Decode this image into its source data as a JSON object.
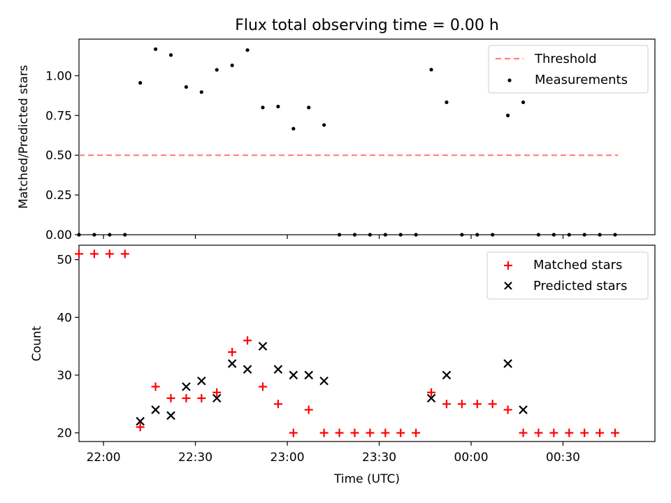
{
  "figure": {
    "title": "Flux total observing time = 0.00 h"
  },
  "chart_data": [
    {
      "type": "scatter",
      "panel": "top",
      "ylabel": "Matched/Predicted stars",
      "ylim": [
        0,
        1.23
      ],
      "xlim": [
        "21:52",
        "01:00"
      ],
      "yticks": [
        "0.00",
        "0.25",
        "0.50",
        "0.75",
        "1.00"
      ],
      "ytick_values": [
        0,
        0.25,
        0.5,
        0.75,
        1.0
      ],
      "legend_position": "top-right",
      "threshold": {
        "name": "Threshold",
        "value": 0.5,
        "x": [
          "21:52",
          "00:48"
        ],
        "color": "#ff7f7f",
        "style": "dashed"
      },
      "series": [
        {
          "name": "Measurements",
          "color": "#000000",
          "x": [
            "21:52",
            "21:57",
            "22:02",
            "22:07",
            "22:12",
            "22:17",
            "22:22",
            "22:27",
            "22:32",
            "22:37",
            "22:42",
            "22:47",
            "22:52",
            "22:57",
            "23:02",
            "23:07",
            "23:12",
            "23:17",
            "23:22",
            "23:27",
            "23:32",
            "23:37",
            "23:42",
            "23:47",
            "23:52",
            "23:57",
            "00:02",
            "00:07",
            "00:12",
            "00:17",
            "00:22",
            "00:27",
            "00:32",
            "00:37",
            "00:42",
            "00:47"
          ],
          "y": [
            0,
            0,
            0,
            0,
            0.955,
            1.167,
            1.13,
            0.929,
            0.897,
            1.037,
            1.065,
            1.161,
            0.8,
            0.806,
            0.667,
            0.8,
            0.69,
            0,
            0,
            0,
            0,
            0,
            0,
            1.038,
            0.833,
            0,
            0,
            0,
            0.75,
            0.833,
            0,
            0,
            0,
            0,
            0,
            0
          ]
        }
      ]
    },
    {
      "type": "scatter",
      "panel": "bottom",
      "xlabel": "Time (UTC)",
      "ylabel": "Count",
      "ylim": [
        18.5,
        52.5
      ],
      "xlim": [
        "21:52",
        "01:00"
      ],
      "xticks": [
        "22:00",
        "22:30",
        "23:00",
        "23:30",
        "00:00",
        "00:30"
      ],
      "yticks": [
        "20",
        "30",
        "40",
        "50"
      ],
      "ytick_values": [
        20,
        30,
        40,
        50
      ],
      "legend_position": "top-right",
      "series": [
        {
          "name": "Matched stars",
          "marker": "plus",
          "color": "#ff0000",
          "x": [
            "21:52",
            "21:57",
            "22:02",
            "22:07",
            "22:12",
            "22:17",
            "22:22",
            "22:27",
            "22:32",
            "22:37",
            "22:42",
            "22:47",
            "22:52",
            "22:57",
            "23:02",
            "23:07",
            "23:12",
            "23:17",
            "23:22",
            "23:27",
            "23:32",
            "23:37",
            "23:42",
            "23:47",
            "23:52",
            "23:57",
            "00:02",
            "00:07",
            "00:12",
            "00:17",
            "00:22",
            "00:27",
            "00:32",
            "00:37",
            "00:42",
            "00:47"
          ],
          "y": [
            51,
            51,
            51,
            51,
            21,
            28,
            26,
            26,
            26,
            27,
            34,
            36,
            28,
            25,
            20,
            24,
            20,
            20,
            20,
            20,
            20,
            20,
            20,
            27,
            25,
            25,
            25,
            25,
            24,
            20,
            20,
            20,
            20,
            20,
            20,
            20
          ]
        },
        {
          "name": "Predicted stars",
          "marker": "x",
          "color": "#000000",
          "x": [
            "22:12",
            "22:17",
            "22:22",
            "22:27",
            "22:32",
            "22:37",
            "22:42",
            "22:47",
            "22:52",
            "22:57",
            "23:02",
            "23:07",
            "23:12",
            "23:47",
            "23:52",
            "00:12",
            "00:17"
          ],
          "y": [
            22,
            24,
            23,
            28,
            29,
            26,
            32,
            31,
            35,
            31,
            30,
            30,
            29,
            26,
            30,
            32,
            24
          ]
        }
      ]
    }
  ]
}
